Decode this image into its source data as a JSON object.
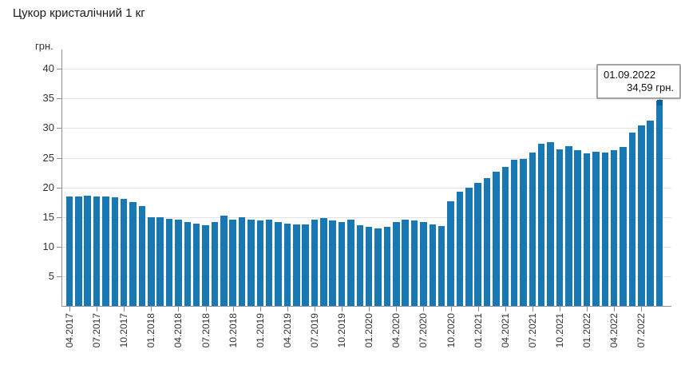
{
  "title": "Цукор кристалічний 1 кг",
  "y_axis": {
    "label": "грн.",
    "ticks": [
      5,
      10,
      15,
      20,
      25,
      30,
      35,
      40
    ]
  },
  "tooltip": {
    "date": "01.09.2022",
    "value": "34,59 грн."
  },
  "colors": {
    "bar": "#1778b4",
    "marker": "#0c5e93",
    "axis": "#909090",
    "grid": "#e1e1e1",
    "tooltip_border": "#a3a3a3",
    "text": "#333333"
  },
  "chart_data": {
    "type": "bar",
    "title": "Цукор кристалічний 1 кг",
    "xlabel": "",
    "ylabel": "грн.",
    "ylim": [
      0,
      42
    ],
    "grid": true,
    "legend": "none",
    "x": [
      "04.2017",
      "05.2017",
      "06.2017",
      "07.2017",
      "08.2017",
      "09.2017",
      "10.2017",
      "11.2017",
      "12.2017",
      "01.2018",
      "02.2018",
      "03.2018",
      "04.2018",
      "05.2018",
      "06.2018",
      "07.2018",
      "08.2018",
      "09.2018",
      "10.2018",
      "11.2018",
      "12.2018",
      "01.2019",
      "02.2019",
      "03.2019",
      "04.2019",
      "05.2019",
      "06.2019",
      "07.2019",
      "08.2019",
      "09.2019",
      "10.2019",
      "11.2019",
      "12.2019",
      "01.2020",
      "02.2020",
      "03.2020",
      "04.2020",
      "05.2020",
      "06.2020",
      "07.2020",
      "08.2020",
      "09.2020",
      "10.2020",
      "11.2020",
      "12.2020",
      "01.2021",
      "02.2021",
      "03.2021",
      "04.2021",
      "05.2021",
      "06.2021",
      "07.2021",
      "08.2021",
      "09.2021",
      "10.2021",
      "11.2021",
      "12.2021",
      "01.2022",
      "02.2022",
      "03.2022",
      "04.2022",
      "05.2022",
      "06.2022",
      "07.2022",
      "08.2022",
      "09.2022"
    ],
    "values": [
      18.4,
      18.5,
      18.6,
      18.5,
      18.4,
      18.3,
      18.0,
      17.5,
      16.8,
      14.9,
      14.9,
      14.7,
      14.5,
      14.1,
      13.9,
      13.6,
      14.1,
      15.2,
      14.6,
      14.9,
      14.5,
      14.4,
      14.6,
      14.2,
      13.9,
      13.7,
      13.8,
      14.6,
      14.8,
      14.4,
      14.2,
      14.5,
      13.6,
      13.3,
      13.1,
      13.3,
      14.1,
      14.6,
      14.4,
      14.1,
      13.7,
      13.5,
      17.6,
      19.3,
      20.0,
      20.7,
      21.6,
      22.6,
      23.4,
      24.7,
      24.8,
      25.9,
      27.4,
      27.6,
      26.4,
      26.9,
      26.3,
      25.7,
      26.0,
      25.9,
      26.3,
      26.8,
      29.3,
      30.4,
      31.2,
      34.59
    ],
    "x_tick_labels": [
      "04.2017",
      "07.2017",
      "10.2017",
      "01.2018",
      "04.2018",
      "07.2018",
      "10.2018",
      "01.2019",
      "04.2019",
      "07.2019",
      "10.2019",
      "01.2020",
      "04.2020",
      "07.2020",
      "10.2020",
      "01.2021",
      "04.2021",
      "07.2021",
      "10.2021",
      "01.2022",
      "04.2022",
      "07.2022"
    ],
    "annotation": {
      "x": "09.2022",
      "label_date": "01.09.2022",
      "label_value": "34,59 грн."
    }
  }
}
